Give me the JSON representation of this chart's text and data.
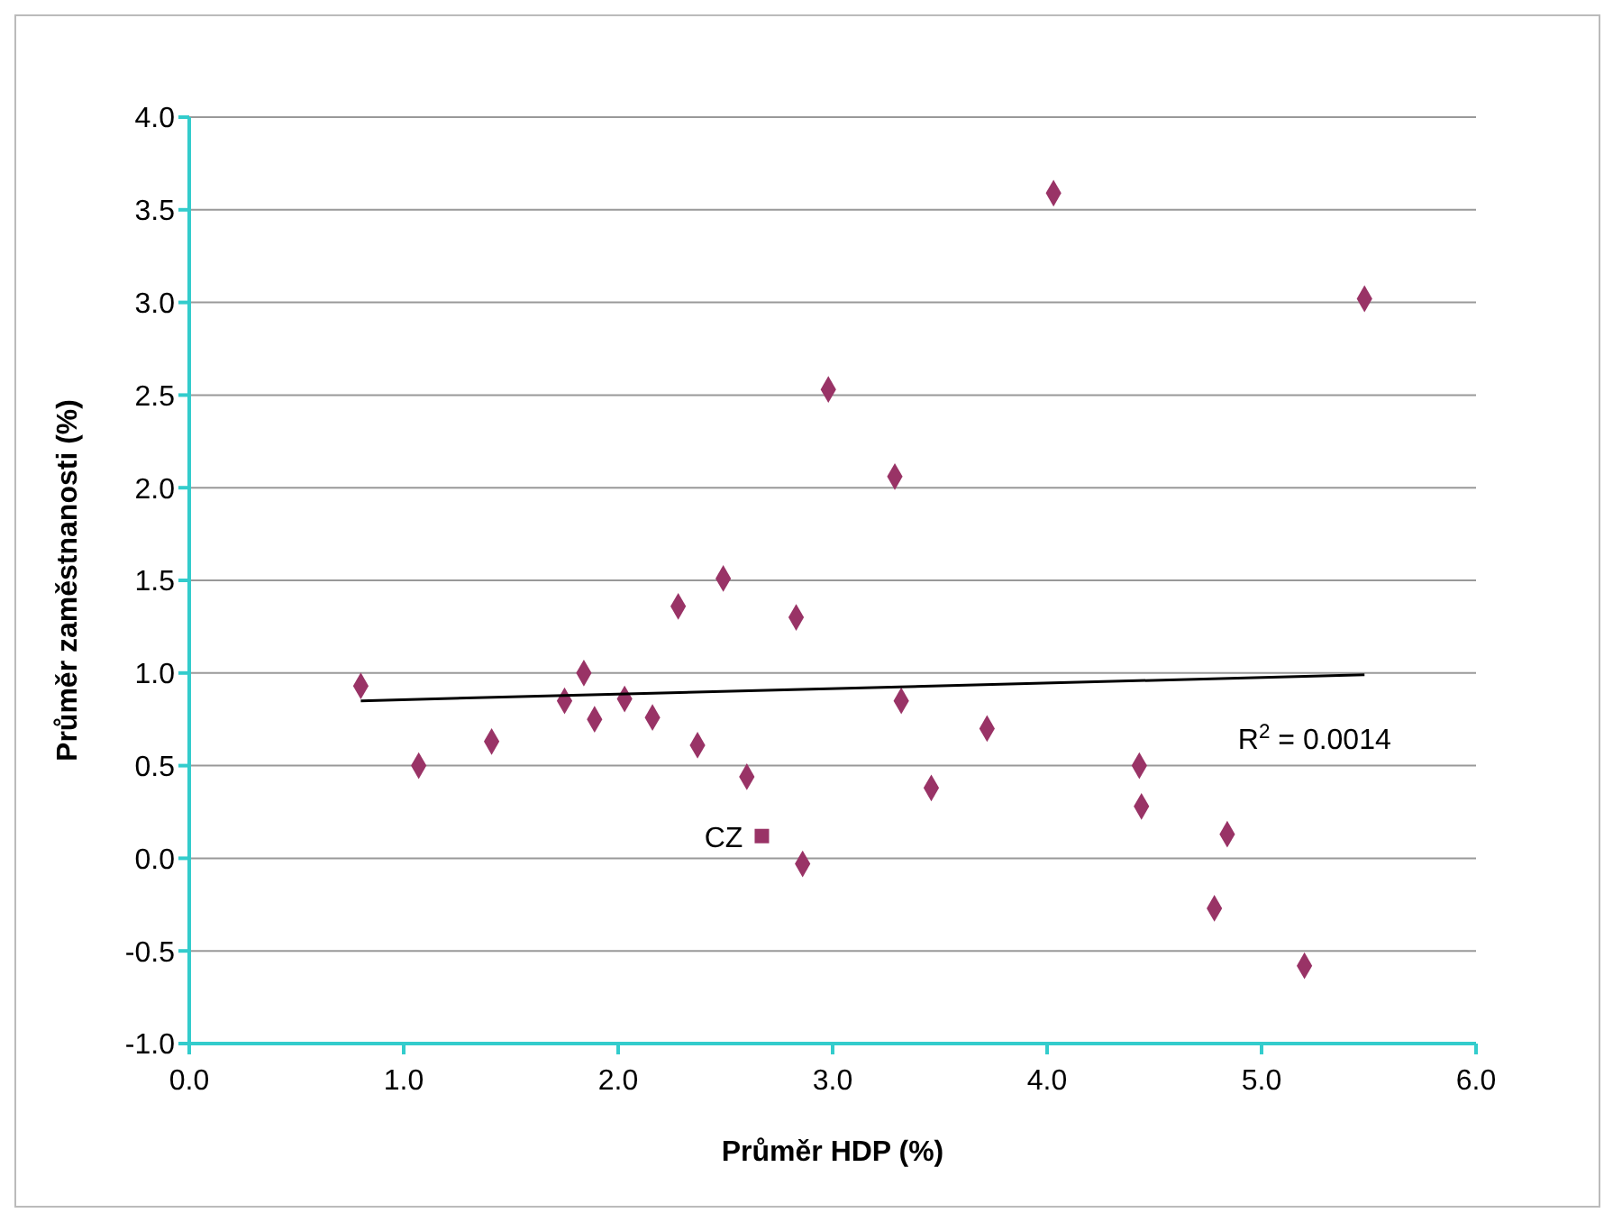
{
  "chart_data": {
    "type": "scatter",
    "xlabel": "Průměr HDP (%)",
    "ylabel": "Průměr zaměstnanosti (%)",
    "xlim": [
      0,
      6
    ],
    "xticks": [
      {
        "value": 0,
        "label": "0.0"
      },
      {
        "value": 1,
        "label": "1.0"
      },
      {
        "value": 2,
        "label": "2.0"
      },
      {
        "value": 3,
        "label": "3.0"
      },
      {
        "value": 4,
        "label": "4.0"
      },
      {
        "value": 5,
        "label": "5.0"
      },
      {
        "value": 6,
        "label": "6.0"
      }
    ],
    "ylim": [
      -1,
      4
    ],
    "yticks": [
      {
        "value": -1,
        "label": "-1.0"
      },
      {
        "value": -0.5,
        "label": "-0.5"
      },
      {
        "value": 0,
        "label": "0.0"
      },
      {
        "value": 0.5,
        "label": "0.5"
      },
      {
        "value": 1,
        "label": "1.0"
      },
      {
        "value": 1.5,
        "label": "1.5"
      },
      {
        "value": 2,
        "label": "2.0"
      },
      {
        "value": 2.5,
        "label": "2.5"
      },
      {
        "value": 3,
        "label": "3.0"
      },
      {
        "value": 3.5,
        "label": "3.5"
      },
      {
        "value": 4,
        "label": "4.0"
      }
    ],
    "grid": "y",
    "legend": false,
    "series": [
      {
        "type": "scatter",
        "marker": "diamond",
        "color": "#993366",
        "x": [
          0.8,
          1.07,
          1.41,
          1.75,
          1.84,
          1.89,
          2.03,
          2.16,
          2.28,
          2.37,
          2.49,
          2.6,
          2.83,
          2.86,
          2.98,
          3.29,
          3.32,
          3.46,
          3.72,
          4.03,
          4.43,
          4.44,
          4.84,
          4.78,
          5.2,
          5.48
        ],
        "values": [
          0.93,
          0.5,
          0.63,
          0.85,
          1.0,
          0.75,
          0.86,
          0.76,
          1.36,
          0.61,
          1.51,
          0.44,
          1.3,
          -0.03,
          2.53,
          2.06,
          0.85,
          0.38,
          0.7,
          3.59,
          0.5,
          0.28,
          0.13,
          -0.27,
          -0.58,
          3.02
        ]
      },
      {
        "type": "scatter",
        "name": "CZ",
        "marker": "square",
        "color": "#993366",
        "x": [
          2.67
        ],
        "values": [
          0.12
        ]
      },
      {
        "type": "line",
        "marker": "none",
        "color": "#000000",
        "x": [
          0.8,
          5.48
        ],
        "values": [
          0.85,
          0.99
        ]
      }
    ],
    "annotations": [
      "R$^{2}$ = 0.0014"
    ]
  }
}
